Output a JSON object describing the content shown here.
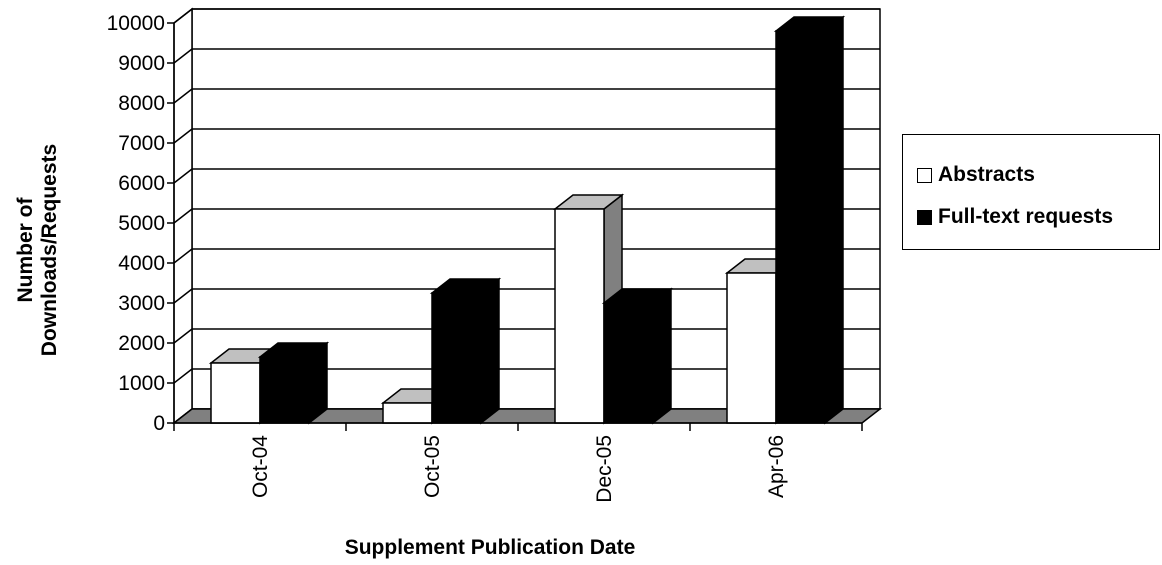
{
  "chart_data": {
    "type": "bar",
    "title": "",
    "xlabel": "Supplement Publication Date",
    "ylabel": "Number of Downloads/Requests",
    "categories": [
      "Oct-04",
      "Oct-05",
      "Dec-05",
      "Apr-06"
    ],
    "series": [
      {
        "name": "Abstracts",
        "values": [
          1500,
          500,
          5350,
          3750
        ],
        "color": "#ffffff"
      },
      {
        "name": "Full-text requests",
        "values": [
          1650,
          3250,
          3000,
          9800
        ],
        "color": "#000000"
      }
    ],
    "ylim": [
      0,
      10000
    ],
    "yticks": [
      0,
      1000,
      2000,
      3000,
      4000,
      5000,
      6000,
      7000,
      8000,
      9000,
      10000
    ],
    "grid": true,
    "legend_position": "right",
    "style": "3d-clustered-column"
  }
}
